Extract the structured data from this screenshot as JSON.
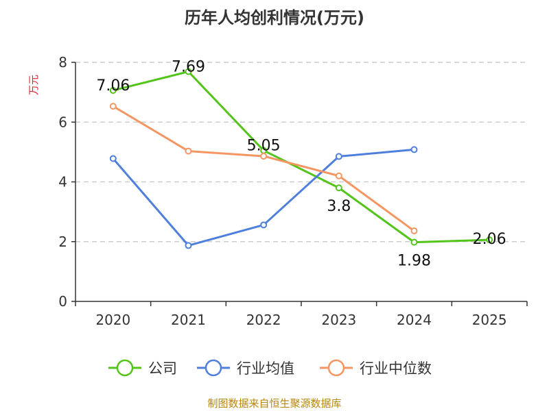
{
  "chart_data": {
    "type": "line",
    "title": "历年人均创利情况(万元)",
    "ylabel": "万元",
    "categories": [
      "2020",
      "2021",
      "2022",
      "2023",
      "2024",
      "2025"
    ],
    "ylim": [
      0,
      8
    ],
    "yticks": [
      0,
      2,
      4,
      6,
      8
    ],
    "grid": true,
    "legend_position": "bottom",
    "series": [
      {
        "name": "公司",
        "color": "#52c41a",
        "values": [
          7.06,
          7.69,
          5.05,
          3.8,
          1.98,
          2.06
        ],
        "labels": [
          "7.06",
          "7.69",
          "5.05",
          "3.8",
          "1.98",
          "2.06"
        ]
      },
      {
        "name": "行业均值",
        "color": "#4e7fdc",
        "values": [
          4.78,
          1.87,
          2.56,
          4.85,
          5.08,
          null
        ]
      },
      {
        "name": "行业中位数",
        "color": "#f59561",
        "values": [
          6.53,
          5.03,
          4.86,
          4.2,
          2.36,
          null
        ]
      }
    ]
  },
  "source": "制图数据来自恒生聚源数据库",
  "colors": {
    "ylabel": "#e0252b",
    "source": "#b8860b",
    "grid": "#cccccc",
    "axis": "#333333"
  }
}
